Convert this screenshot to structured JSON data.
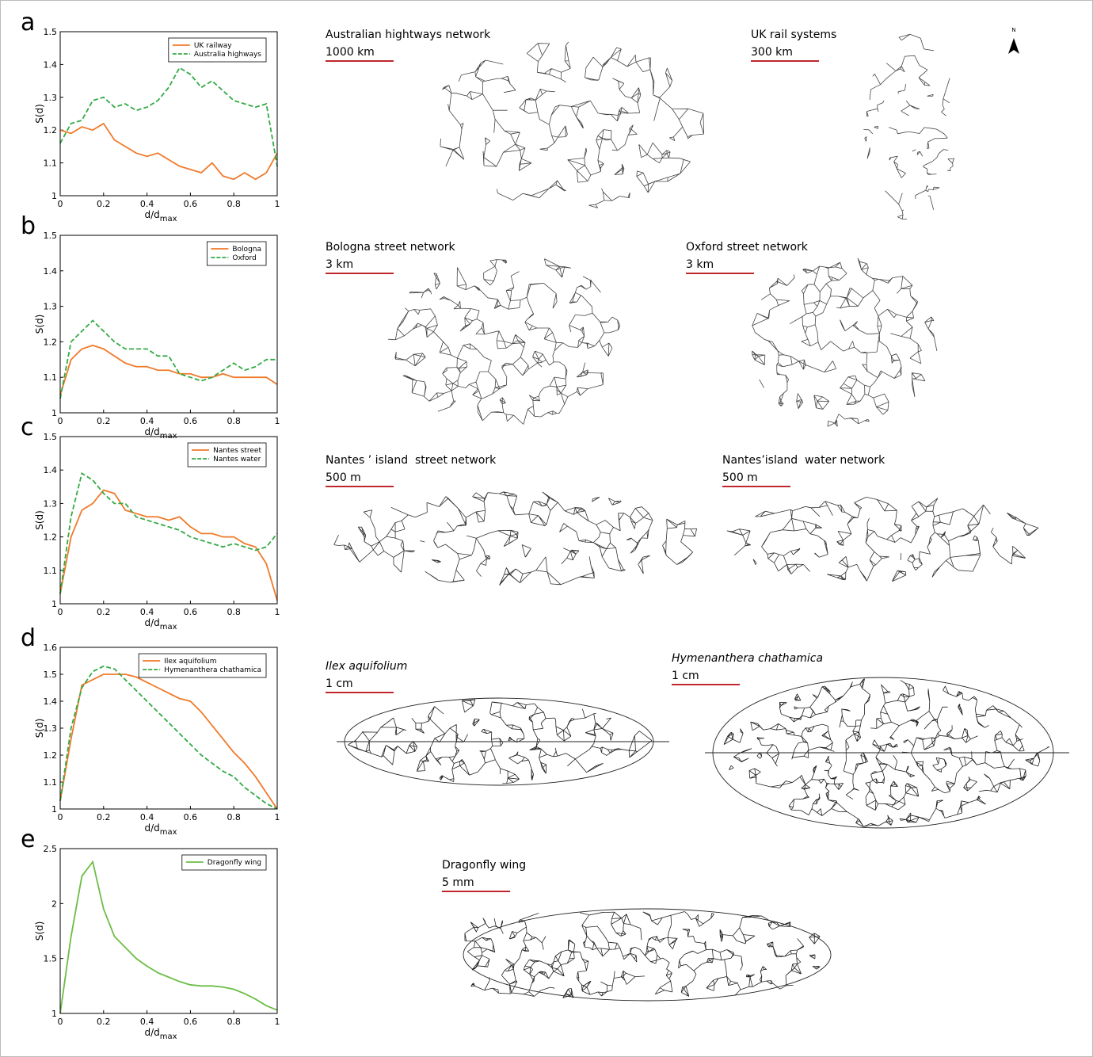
{
  "chart_data": [
    {
      "type": "line",
      "panel": "a",
      "y_label": "S(d)",
      "x_label": {
        "base": "d/d",
        "sub": "max"
      },
      "x": [
        0,
        0.05,
        0.1,
        0.15,
        0.2,
        0.25,
        0.3,
        0.35,
        0.4,
        0.45,
        0.5,
        0.55,
        0.6,
        0.65,
        0.7,
        0.75,
        0.8,
        0.85,
        0.9,
        0.95,
        1
      ],
      "xlim": [
        0,
        1
      ],
      "xticks": [
        0,
        0.2,
        0.4,
        0.6,
        0.8,
        1
      ],
      "ylim": [
        1,
        1.5
      ],
      "yticks": [
        1,
        1.1,
        1.2,
        1.3,
        1.4,
        1.5
      ],
      "legend": "upper right",
      "series": [
        {
          "name": "UK railway",
          "color": "#f07a2a",
          "linestyle": "solid",
          "values": [
            1.2,
            1.19,
            1.21,
            1.2,
            1.22,
            1.17,
            1.15,
            1.13,
            1.12,
            1.13,
            1.11,
            1.09,
            1.08,
            1.07,
            1.1,
            1.06,
            1.05,
            1.07,
            1.05,
            1.07,
            1.13
          ]
        },
        {
          "name": "Australia highways",
          "color": "#33aa44",
          "linestyle": "dashed",
          "values": [
            1.16,
            1.22,
            1.23,
            1.29,
            1.3,
            1.27,
            1.28,
            1.26,
            1.27,
            1.29,
            1.33,
            1.39,
            1.37,
            1.33,
            1.35,
            1.32,
            1.29,
            1.28,
            1.27,
            1.28,
            1.09
          ]
        }
      ]
    },
    {
      "type": "line",
      "panel": "b",
      "y_label": "S(d)",
      "x_label": {
        "base": "d/d",
        "sub": "max"
      },
      "x": [
        0,
        0.05,
        0.1,
        0.15,
        0.2,
        0.25,
        0.3,
        0.35,
        0.4,
        0.45,
        0.5,
        0.55,
        0.6,
        0.65,
        0.7,
        0.75,
        0.8,
        0.85,
        0.9,
        0.95,
        1
      ],
      "xlim": [
        0,
        1
      ],
      "xticks": [
        0,
        0.2,
        0.4,
        0.6,
        0.8,
        1
      ],
      "ylim": [
        1,
        1.5
      ],
      "yticks": [
        1,
        1.1,
        1.2,
        1.3,
        1.4,
        1.5
      ],
      "legend": "upper right",
      "series": [
        {
          "name": "Bologna",
          "color": "#f07a2a",
          "linestyle": "solid",
          "values": [
            1.05,
            1.15,
            1.18,
            1.19,
            1.18,
            1.16,
            1.14,
            1.13,
            1.13,
            1.12,
            1.12,
            1.11,
            1.11,
            1.1,
            1.1,
            1.11,
            1.1,
            1.1,
            1.1,
            1.1,
            1.08
          ]
        },
        {
          "name": "Oxford",
          "color": "#33aa44",
          "linestyle": "dashed",
          "values": [
            1.04,
            1.2,
            1.23,
            1.26,
            1.23,
            1.2,
            1.18,
            1.18,
            1.18,
            1.16,
            1.16,
            1.11,
            1.1,
            1.09,
            1.1,
            1.12,
            1.14,
            1.12,
            1.13,
            1.15,
            1.15
          ]
        }
      ]
    },
    {
      "type": "line",
      "panel": "c",
      "y_label": "S(d)",
      "x_label": {
        "base": "d/d",
        "sub": "max"
      },
      "x": [
        0,
        0.05,
        0.1,
        0.15,
        0.2,
        0.25,
        0.3,
        0.35,
        0.4,
        0.45,
        0.5,
        0.55,
        0.6,
        0.65,
        0.7,
        0.75,
        0.8,
        0.85,
        0.9,
        0.95,
        1
      ],
      "xlim": [
        0,
        1
      ],
      "xticks": [
        0,
        0.2,
        0.4,
        0.6,
        0.8,
        1
      ],
      "ylim": [
        1,
        1.5
      ],
      "yticks": [
        1,
        1.1,
        1.2,
        1.3,
        1.4,
        1.5
      ],
      "legend": "upper right",
      "series": [
        {
          "name": "Nantes street",
          "color": "#f07a2a",
          "linestyle": "solid",
          "values": [
            1.03,
            1.2,
            1.28,
            1.3,
            1.34,
            1.33,
            1.28,
            1.27,
            1.26,
            1.26,
            1.25,
            1.26,
            1.23,
            1.21,
            1.21,
            1.2,
            1.2,
            1.18,
            1.17,
            1.12,
            1.01
          ]
        },
        {
          "name": "Nantes water",
          "color": "#33aa44",
          "linestyle": "dashed",
          "values": [
            1.03,
            1.26,
            1.39,
            1.37,
            1.33,
            1.3,
            1.3,
            1.26,
            1.25,
            1.24,
            1.23,
            1.22,
            1.2,
            1.19,
            1.18,
            1.17,
            1.18,
            1.17,
            1.16,
            1.17,
            1.21
          ]
        }
      ]
    },
    {
      "type": "line",
      "panel": "d",
      "y_label": "S(d)",
      "x_label": {
        "base": "d/d",
        "sub": "max"
      },
      "x": [
        0,
        0.05,
        0.1,
        0.15,
        0.2,
        0.25,
        0.3,
        0.35,
        0.4,
        0.45,
        0.5,
        0.55,
        0.6,
        0.65,
        0.7,
        0.75,
        0.8,
        0.85,
        0.9,
        0.95,
        1
      ],
      "xlim": [
        0,
        1
      ],
      "xticks": [
        0,
        0.2,
        0.4,
        0.6,
        0.8,
        1
      ],
      "ylim": [
        1,
        1.6
      ],
      "yticks": [
        1,
        1.1,
        1.2,
        1.3,
        1.4,
        1.5,
        1.6
      ],
      "legend": "upper right",
      "series": [
        {
          "name": "Ilex aquifolium",
          "color": "#f07a2a",
          "linestyle": "solid",
          "values": [
            1.03,
            1.26,
            1.46,
            1.48,
            1.5,
            1.5,
            1.5,
            1.49,
            1.47,
            1.45,
            1.43,
            1.41,
            1.4,
            1.36,
            1.31,
            1.26,
            1.21,
            1.17,
            1.12,
            1.06,
            1.0
          ]
        },
        {
          "name": "Hymenanthera chathamica",
          "color": "#33aa44",
          "linestyle": "dashed",
          "values": [
            1.03,
            1.3,
            1.45,
            1.51,
            1.53,
            1.52,
            1.48,
            1.44,
            1.4,
            1.36,
            1.32,
            1.28,
            1.24,
            1.2,
            1.17,
            1.14,
            1.12,
            1.08,
            1.05,
            1.02,
            1.0
          ]
        }
      ]
    },
    {
      "type": "line",
      "panel": "e",
      "y_label": "S(d)",
      "x_label": {
        "base": "d/d",
        "sub": "max"
      },
      "x": [
        0,
        0.05,
        0.1,
        0.15,
        0.2,
        0.25,
        0.3,
        0.35,
        0.4,
        0.45,
        0.5,
        0.55,
        0.6,
        0.65,
        0.7,
        0.75,
        0.8,
        0.85,
        0.9,
        0.95,
        1
      ],
      "xlim": [
        0,
        1
      ],
      "xticks": [
        0,
        0.2,
        0.4,
        0.6,
        0.8,
        1
      ],
      "ylim": [
        1,
        2.5
      ],
      "yticks": [
        1,
        1.5,
        2,
        2.5
      ],
      "legend": "upper right",
      "series": [
        {
          "name": "Dragonfly wing",
          "color": "#6cbd45",
          "linestyle": "solid",
          "values": [
            1.0,
            1.7,
            2.25,
            2.38,
            1.95,
            1.7,
            1.6,
            1.5,
            1.43,
            1.37,
            1.33,
            1.29,
            1.26,
            1.25,
            1.25,
            1.24,
            1.22,
            1.18,
            1.13,
            1.07,
            1.03
          ]
        }
      ]
    }
  ],
  "panels": [
    {
      "images": [
        {
          "title": "Australian hightways network",
          "scale": "1000 km",
          "italic": false
        },
        {
          "title": "UK rail systems",
          "scale": "300 km",
          "italic": false
        }
      ]
    },
    {
      "images": [
        {
          "title": "Bologna street network",
          "scale": "3 km",
          "italic": false
        },
        {
          "title": "Oxford street network",
          "scale": "3 km",
          "italic": false
        }
      ]
    },
    {
      "images": [
        {
          "title": "Nantes ’ island  street network",
          "scale": "500 m",
          "italic": false
        },
        {
          "title": "Nantes’island  water network",
          "scale": "500 m",
          "italic": false
        }
      ]
    },
    {
      "images": [
        {
          "title": "Ilex aquifolium",
          "scale": "1 cm",
          "italic": true
        },
        {
          "title": "Hymenanthera chathamica",
          "scale": "1 cm",
          "italic": true
        }
      ]
    },
    {
      "images": [
        {
          "title": "Dragonfly wing",
          "scale": "5 mm",
          "italic": false
        }
      ]
    }
  ],
  "north_label": "N"
}
